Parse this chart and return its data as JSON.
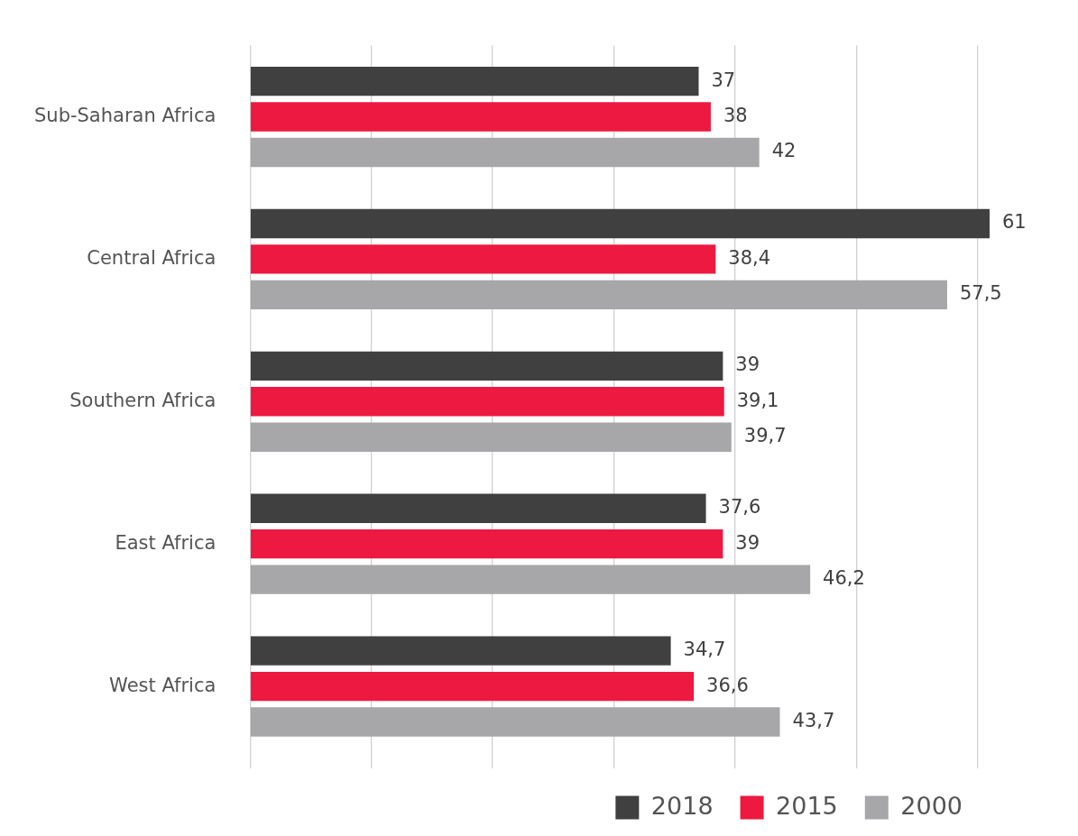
{
  "chart_data": {
    "type": "bar",
    "orientation": "horizontal",
    "categories": [
      "Sub-Saharan Africa",
      "Central Africa",
      "Southern Africa",
      "East Africa",
      "West Africa"
    ],
    "series": [
      {
        "name": "2018",
        "color": "#404040",
        "values": [
          37,
          61,
          39,
          37.6,
          34.7
        ],
        "value_labels": [
          "37",
          "61",
          "39",
          "37,6",
          "34,7"
        ]
      },
      {
        "name": "2015",
        "color": "#ee1940",
        "values": [
          38,
          38.4,
          39.1,
          39,
          36.6
        ],
        "value_labels": [
          "38",
          "38,4",
          "39,1",
          "39",
          "36,6"
        ]
      },
      {
        "name": "2000",
        "color": "#a7a7aa",
        "values": [
          42,
          57.5,
          39.7,
          46.2,
          43.7
        ],
        "value_labels": [
          "42",
          "57,5",
          "39,7",
          "46,2",
          "43,7"
        ]
      }
    ],
    "xticks": [
      {
        "value": 0,
        "label": null
      },
      {
        "value": 10,
        "label": null
      },
      {
        "value": 20,
        "label": null
      },
      {
        "value": 30,
        "label": null
      },
      {
        "value": 40,
        "label": null
      },
      {
        "value": 50,
        "label": null
      },
      {
        "value": 60,
        "label": null
      }
    ],
    "tick_labels": "y",
    "grid": "x",
    "legend": "bottom"
  }
}
